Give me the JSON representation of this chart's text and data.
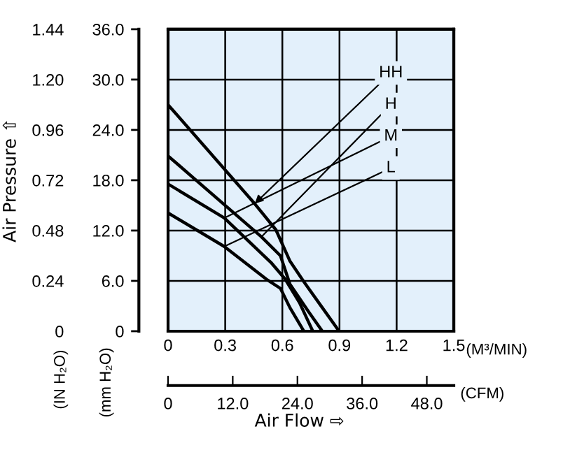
{
  "chart_data": {
    "type": "line",
    "xlabel": "(M³/MIN)",
    "ylabel": "(mm H₂O)",
    "x2label": "(CFM)",
    "y2label": "(IN H₂O)",
    "annotations": [
      "Air Pressure ⇧",
      "Air Flow ⇨"
    ],
    "xlim": [
      0,
      1.5
    ],
    "xticks": [
      0,
      0.3,
      0.6,
      0.9,
      1.2,
      1.5
    ],
    "ylim": [
      0,
      36
    ],
    "yticks": [
      0,
      {
        "value": 6,
        "label": "6.0"
      },
      {
        "value": 12,
        "label": "12.0"
      },
      {
        "value": 18,
        "label": "18.0"
      },
      {
        "value": 24,
        "label": "24.0"
      },
      {
        "value": 30,
        "label": "30.0"
      },
      {
        "value": 36,
        "label": "36.0"
      }
    ],
    "y2lim": [
      0,
      1.44
    ],
    "y2ticks": [
      0,
      0.24,
      0.48,
      0.72,
      0.96,
      {
        "value": 1.2,
        "label": "1.20"
      },
      1.44
    ],
    "x2lim": [
      0,
      53.0
    ],
    "x2ticks": [
      0,
      {
        "value": 12,
        "label": "12.0"
      },
      {
        "value": 24,
        "label": "24.0"
      },
      {
        "value": 36,
        "label": "36.0"
      },
      {
        "value": 48,
        "label": "48.0"
      }
    ],
    "grid": true,
    "legend": false,
    "marker": "none",
    "line_style": "solid",
    "series": [
      {
        "name": "HH",
        "color": "#000000",
        "x": [
          0,
          0.455,
          0.566,
          0.639,
          0.713,
          0.81,
          0.898
        ],
        "values": [
          27.0,
          15.2,
          12.1,
          8.4,
          5.9,
          2.8,
          0
        ]
      },
      {
        "name": "H",
        "color": "#000000",
        "x": [
          0,
          0.49,
          0.59,
          0.64,
          0.74,
          0.81
        ],
        "values": [
          20.9,
          11.25,
          9.0,
          5.6,
          2.25,
          0
        ]
      },
      {
        "name": "M",
        "color": "#000000",
        "x": [
          0,
          0.295,
          0.54,
          0.615,
          0.69,
          0.76
        ],
        "values": [
          17.55,
          13.5,
          8.2,
          6.2,
          3.4,
          0
        ]
      },
      {
        "name": "L",
        "color": "#000000",
        "x": [
          0,
          0.295,
          0.516,
          0.59,
          0.64,
          0.713
        ],
        "values": [
          14.1,
          10.1,
          6.2,
          5.1,
          2.8,
          0
        ]
      }
    ]
  }
}
